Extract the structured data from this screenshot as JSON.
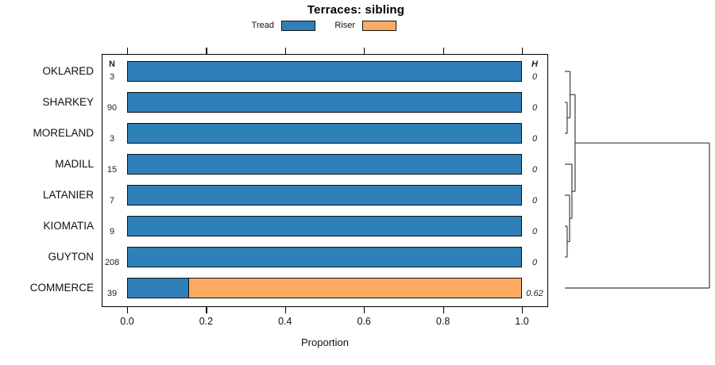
{
  "title": "Terraces: sibling",
  "legend": {
    "items": [
      {
        "label": "Tread",
        "color": "#2f7fb8"
      },
      {
        "label": "Riser",
        "color": "#fcab61"
      }
    ]
  },
  "columns": {
    "n_header": "N",
    "h_header": "H"
  },
  "x_axis": {
    "label": "Proportion",
    "tick_labels": [
      "0.0",
      "0.2",
      "0.4",
      "0.6",
      "0.8",
      "1.0"
    ],
    "tick_values": [
      0.0,
      0.2,
      0.4,
      0.6,
      0.8,
      1.0
    ],
    "range": [
      0,
      1
    ]
  },
  "chart_data": {
    "type": "bar",
    "subtype": "horizontal-stacked-proportion",
    "title": "Terraces: sibling",
    "xlabel": "Proportion",
    "xlim": [
      0,
      1
    ],
    "grid": false,
    "legend_position": "top",
    "categories": [
      "OKLARED",
      "SHARKEY",
      "MORELAND",
      "MADILL",
      "LATANIER",
      "KIOMATIA",
      "GUYTON",
      "COMMERCE"
    ],
    "row_n": [
      3,
      90,
      3,
      15,
      7,
      9,
      208,
      39
    ],
    "row_h": [
      "0",
      "0",
      "0",
      "0",
      "0",
      "0",
      "0",
      "0.62"
    ],
    "series": [
      {
        "name": "Tread",
        "color": "#2f7fb8",
        "values": [
          1.0,
          1.0,
          1.0,
          1.0,
          1.0,
          1.0,
          1.0,
          0.155
        ]
      },
      {
        "name": "Riser",
        "color": "#fcab61",
        "values": [
          0.0,
          0.0,
          0.0,
          0.0,
          0.0,
          0.0,
          0.0,
          0.845
        ]
      }
    ],
    "dendrogram": {
      "orientation": "right",
      "line_color": "#3d3d3d",
      "leaves": [
        "OKLARED",
        "SHARKEY",
        "MORELAND",
        "MADILL",
        "LATANIER",
        "KIOMATIA",
        "GUYTON",
        "COMMERCE"
      ],
      "merges": [
        {
          "id": "C0",
          "a": "L1",
          "b": "L2",
          "h": 0.016
        },
        {
          "id": "C1",
          "a": "L0",
          "b": "C0",
          "h": 0.036
        },
        {
          "id": "C2",
          "a": "L5",
          "b": "L6",
          "h": 0.016
        },
        {
          "id": "C3",
          "a": "L4",
          "b": "C2",
          "h": 0.033
        },
        {
          "id": "C4",
          "a": "L3",
          "b": "C3",
          "h": 0.049
        },
        {
          "id": "C5",
          "a": "C1",
          "b": "C4",
          "h": 0.071
        },
        {
          "id": "C6",
          "a": "C5",
          "b": "L7",
          "h": 1.0
        }
      ]
    }
  }
}
